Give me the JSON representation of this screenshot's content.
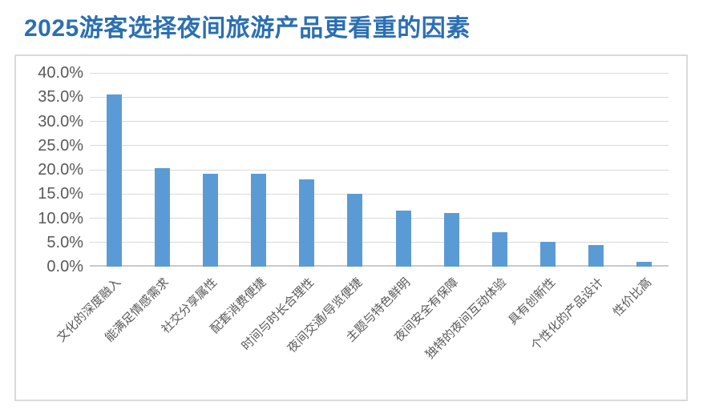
{
  "title": "2025游客选择夜间旅游产品更看重的因素",
  "colors": {
    "title": "#2B6FB2",
    "bar": "#5B9BD5",
    "gridline": "#D9D9D9",
    "axis_text": "#595959"
  },
  "chart_data": {
    "type": "bar",
    "title": "2025游客选择夜间旅游产品更看重的因素",
    "categories": [
      "文化的深度融入",
      "能满足情感需求",
      "社交分享属性",
      "配套消费便捷",
      "时间与时长合理性",
      "夜间交通/导览便捷",
      "主题与特色鲜明",
      "夜间安全有保障",
      "独特的夜间互动体验",
      "具有创新性",
      "个性化的产品设计",
      "性价比高"
    ],
    "values": [
      35.5,
      20.3,
      19.2,
      19.2,
      18.0,
      15.0,
      11.5,
      11.1,
      7.1,
      5.2,
      4.5,
      1.0
    ],
    "unit": "%",
    "xlabel": "",
    "ylabel": "",
    "ylim": [
      0,
      40
    ],
    "y_tick_step": 5,
    "y_tick_labels": [
      "0.0%",
      "5.0%",
      "10.0%",
      "15.0%",
      "20.0%",
      "25.0%",
      "30.0%",
      "35.0%",
      "40.0%"
    ],
    "grid": true,
    "legend": false
  }
}
